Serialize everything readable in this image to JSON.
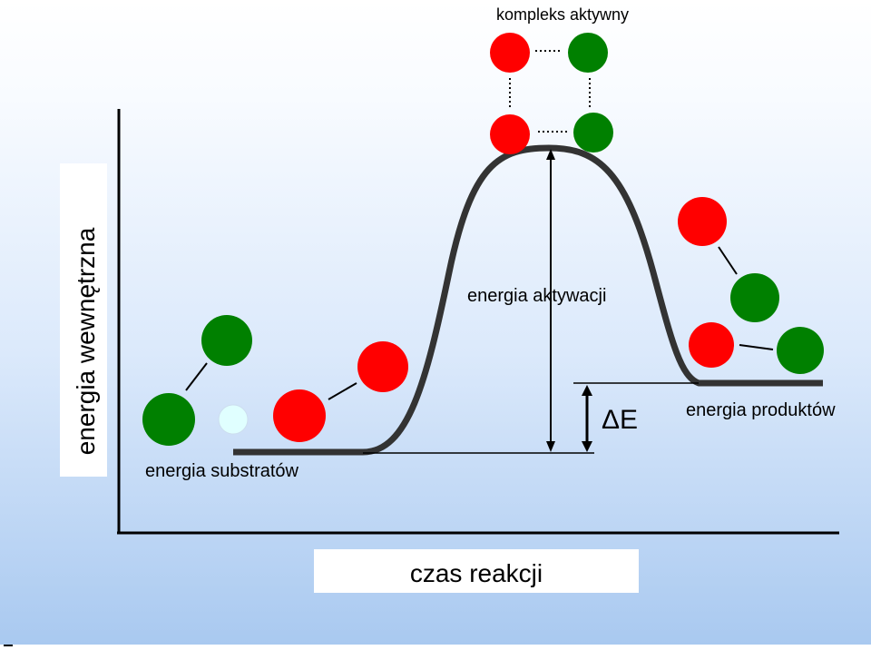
{
  "diagram": {
    "title_top": "kompleks aktywny",
    "y_axis_label": "energia wewnętrzna",
    "x_axis_label": "czas reakcji",
    "label_activation": "energia aktywacji",
    "label_substrates": "energia substratów",
    "label_products": "energia produktów",
    "label_delta": "ΔE"
  },
  "colors": {
    "red": "#ff0000",
    "green": "#008000",
    "light_cyan": "#e0ffff",
    "curve": "#333333",
    "bg_top": "#ffffff",
    "bg_bottom": "#a9c9f0"
  }
}
